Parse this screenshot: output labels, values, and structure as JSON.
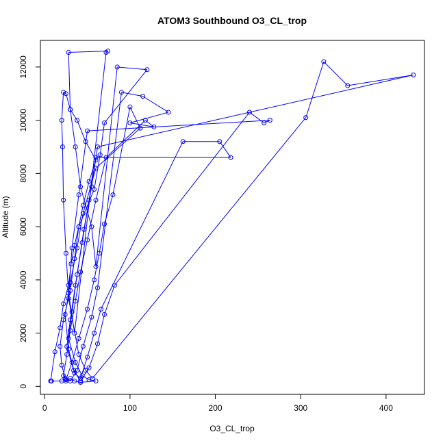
{
  "chart_data": {
    "type": "line",
    "title": "ATOM3 Southbound O3_CL_trop",
    "xlabel": "O3_CL_trop",
    "ylabel": "Altitude (m)",
    "xlim": [
      -5,
      445
    ],
    "ylim": [
      -300,
      13000
    ],
    "xticks": [
      0,
      100,
      200,
      300,
      400
    ],
    "yticks": [
      0,
      2000,
      4000,
      6000,
      8000,
      10000,
      12000
    ],
    "grid": false,
    "marker": "open-circle",
    "line_color": "#0000ff",
    "series": [
      {
        "x": [
          7,
          12,
          18,
          22,
          28,
          31,
          35,
          40,
          45,
          52,
          60,
          48,
          38,
          30,
          25,
          22,
          20,
          21,
          22,
          25,
          28,
          35,
          72,
          74,
          28,
          30,
          36,
          42,
          55,
          60,
          85,
          120,
          70,
          65,
          58,
          40,
          35,
          30,
          22,
          18,
          20,
          24,
          30,
          38,
          45,
          55,
          62,
          90,
          115,
          145,
          100,
          128,
          118,
          72,
          60,
          50,
          42,
          36,
          30,
          26,
          22,
          25,
          32,
          40,
          50,
          58,
          64,
          70,
          80,
          100,
          112,
          60,
          45,
          38,
          30,
          24,
          28,
          35,
          42,
          50,
          58,
          66,
          162,
          205,
          218,
          60,
          52,
          44,
          36,
          30,
          26,
          34,
          42,
          52,
          62,
          70,
          82,
          240,
          257,
          264,
          50,
          40,
          32,
          28,
          40,
          48,
          56,
          306,
          327,
          355,
          432,
          62,
          55,
          46,
          38,
          32,
          28,
          36,
          44,
          52,
          60,
          42,
          35,
          30,
          25,
          20,
          8
        ],
        "y": [
          200,
          1300,
          2200,
          3100,
          3800,
          4600,
          5300,
          6000,
          6800,
          7700,
          8500,
          9200,
          10000,
          10400,
          11000,
          11050,
          10000,
          9000,
          7000,
          5000,
          3500,
          2000,
          12550,
          12600,
          12550,
          10400,
          9000,
          7500,
          6000,
          4500,
          12000,
          11900,
          9900,
          8700,
          7400,
          6000,
          4800,
          3600,
          2500,
          1500,
          800,
          300,
          200,
          600,
          1500,
          2600,
          3700,
          11050,
          10900,
          10300,
          9900,
          9750,
          10000,
          8600,
          7000,
          5500,
          4300,
          3200,
          2100,
          1200,
          400,
          250,
          900,
          1800,
          2900,
          4000,
          5000,
          6100,
          7200,
          10500,
          9700,
          8200,
          6500,
          5200,
          3900,
          2700,
          1400,
          500,
          300,
          1100,
          2000,
          2900,
          9200,
          9200,
          8600,
          8600,
          7000,
          5400,
          3800,
          2500,
          1500,
          600,
          200,
          700,
          1600,
          2700,
          3800,
          10300,
          9900,
          10000,
          9600,
          7200,
          5200,
          3300,
          1200,
          600,
          300,
          10100,
          12200,
          11300,
          11700,
          9000,
          7500,
          5900,
          4200,
          2800,
          1800,
          900,
          400,
          250,
          200,
          150,
          200,
          300,
          200,
          200,
          200
        ]
      }
    ]
  }
}
